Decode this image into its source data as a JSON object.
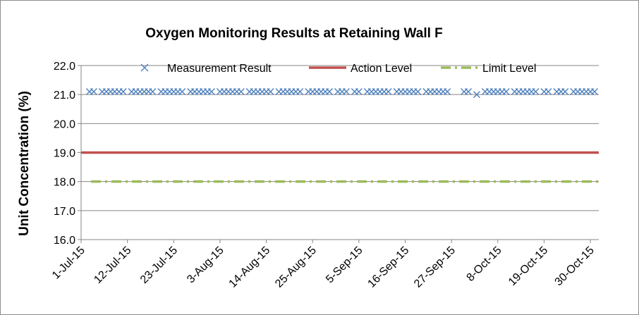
{
  "chart_data": {
    "type": "line",
    "title": "Oxygen Monitoring Results at Retaining Wall F",
    "ylabel": "Unit Concentration (%)",
    "xlabel": "",
    "ylim": [
      16.0,
      22.0
    ],
    "yticks": [
      "16.0",
      "17.0",
      "18.0",
      "19.0",
      "20.0",
      "21.0",
      "22.0"
    ],
    "xlim": [
      "2015-07-01",
      "2015-11-01"
    ],
    "xticks": [
      "1-Jul-15",
      "12-Jul-15",
      "23-Jul-15",
      "3-Aug-15",
      "14-Aug-15",
      "25-Aug-15",
      "5-Sep-15",
      "16-Sep-15",
      "27-Sep-15",
      "8-Oct-15",
      "19-Oct-15",
      "30-Oct-15"
    ],
    "grid": "horizontal",
    "legend_position": "top",
    "series": [
      {
        "name": "Measurement Result",
        "style": "x-markers",
        "color": "#4f81bd",
        "points": [
          {
            "x": "2015-07-03",
            "y": 21.1
          },
          {
            "x": "2015-07-04",
            "y": 21.1
          },
          {
            "x": "2015-07-06",
            "y": 21.1
          },
          {
            "x": "2015-07-07",
            "y": 21.1
          },
          {
            "x": "2015-07-08",
            "y": 21.1
          },
          {
            "x": "2015-07-09",
            "y": 21.1
          },
          {
            "x": "2015-07-10",
            "y": 21.1
          },
          {
            "x": "2015-07-11",
            "y": 21.1
          },
          {
            "x": "2015-07-13",
            "y": 21.1
          },
          {
            "x": "2015-07-14",
            "y": 21.1
          },
          {
            "x": "2015-07-15",
            "y": 21.1
          },
          {
            "x": "2015-07-16",
            "y": 21.1
          },
          {
            "x": "2015-07-17",
            "y": 21.1
          },
          {
            "x": "2015-07-18",
            "y": 21.1
          },
          {
            "x": "2015-07-20",
            "y": 21.1
          },
          {
            "x": "2015-07-21",
            "y": 21.1
          },
          {
            "x": "2015-07-22",
            "y": 21.1
          },
          {
            "x": "2015-07-23",
            "y": 21.1
          },
          {
            "x": "2015-07-24",
            "y": 21.1
          },
          {
            "x": "2015-07-25",
            "y": 21.1
          },
          {
            "x": "2015-07-27",
            "y": 21.1
          },
          {
            "x": "2015-07-28",
            "y": 21.1
          },
          {
            "x": "2015-07-29",
            "y": 21.1
          },
          {
            "x": "2015-07-30",
            "y": 21.1
          },
          {
            "x": "2015-07-31",
            "y": 21.1
          },
          {
            "x": "2015-08-01",
            "y": 21.1
          },
          {
            "x": "2015-08-03",
            "y": 21.1
          },
          {
            "x": "2015-08-04",
            "y": 21.1
          },
          {
            "x": "2015-08-05",
            "y": 21.1
          },
          {
            "x": "2015-08-06",
            "y": 21.1
          },
          {
            "x": "2015-08-07",
            "y": 21.1
          },
          {
            "x": "2015-08-08",
            "y": 21.1
          },
          {
            "x": "2015-08-10",
            "y": 21.1
          },
          {
            "x": "2015-08-11",
            "y": 21.1
          },
          {
            "x": "2015-08-12",
            "y": 21.1
          },
          {
            "x": "2015-08-13",
            "y": 21.1
          },
          {
            "x": "2015-08-14",
            "y": 21.1
          },
          {
            "x": "2015-08-15",
            "y": 21.1
          },
          {
            "x": "2015-08-17",
            "y": 21.1
          },
          {
            "x": "2015-08-18",
            "y": 21.1
          },
          {
            "x": "2015-08-19",
            "y": 21.1
          },
          {
            "x": "2015-08-20",
            "y": 21.1
          },
          {
            "x": "2015-08-21",
            "y": 21.1
          },
          {
            "x": "2015-08-22",
            "y": 21.1
          },
          {
            "x": "2015-08-24",
            "y": 21.1
          },
          {
            "x": "2015-08-25",
            "y": 21.1
          },
          {
            "x": "2015-08-26",
            "y": 21.1
          },
          {
            "x": "2015-08-27",
            "y": 21.1
          },
          {
            "x": "2015-08-28",
            "y": 21.1
          },
          {
            "x": "2015-08-29",
            "y": 21.1
          },
          {
            "x": "2015-08-31",
            "y": 21.1
          },
          {
            "x": "2015-09-01",
            "y": 21.1
          },
          {
            "x": "2015-09-02",
            "y": 21.1
          },
          {
            "x": "2015-09-04",
            "y": 21.1
          },
          {
            "x": "2015-09-05",
            "y": 21.1
          },
          {
            "x": "2015-09-07",
            "y": 21.1
          },
          {
            "x": "2015-09-08",
            "y": 21.1
          },
          {
            "x": "2015-09-09",
            "y": 21.1
          },
          {
            "x": "2015-09-10",
            "y": 21.1
          },
          {
            "x": "2015-09-11",
            "y": 21.1
          },
          {
            "x": "2015-09-12",
            "y": 21.1
          },
          {
            "x": "2015-09-14",
            "y": 21.1
          },
          {
            "x": "2015-09-15",
            "y": 21.1
          },
          {
            "x": "2015-09-16",
            "y": 21.1
          },
          {
            "x": "2015-09-17",
            "y": 21.1
          },
          {
            "x": "2015-09-18",
            "y": 21.1
          },
          {
            "x": "2015-09-19",
            "y": 21.1
          },
          {
            "x": "2015-09-21",
            "y": 21.1
          },
          {
            "x": "2015-09-22",
            "y": 21.1
          },
          {
            "x": "2015-09-23",
            "y": 21.1
          },
          {
            "x": "2015-09-24",
            "y": 21.1
          },
          {
            "x": "2015-09-25",
            "y": 21.1
          },
          {
            "x": "2015-09-26",
            "y": 21.1
          },
          {
            "x": "2015-09-30",
            "y": 21.1
          },
          {
            "x": "2015-10-01",
            "y": 21.1
          },
          {
            "x": "2015-10-03",
            "y": 21.0
          },
          {
            "x": "2015-10-05",
            "y": 21.1
          },
          {
            "x": "2015-10-06",
            "y": 21.1
          },
          {
            "x": "2015-10-07",
            "y": 21.1
          },
          {
            "x": "2015-10-08",
            "y": 21.1
          },
          {
            "x": "2015-10-09",
            "y": 21.1
          },
          {
            "x": "2015-10-10",
            "y": 21.1
          },
          {
            "x": "2015-10-12",
            "y": 21.1
          },
          {
            "x": "2015-10-13",
            "y": 21.1
          },
          {
            "x": "2015-10-14",
            "y": 21.1
          },
          {
            "x": "2015-10-15",
            "y": 21.1
          },
          {
            "x": "2015-10-16",
            "y": 21.1
          },
          {
            "x": "2015-10-17",
            "y": 21.1
          },
          {
            "x": "2015-10-19",
            "y": 21.1
          },
          {
            "x": "2015-10-20",
            "y": 21.1
          },
          {
            "x": "2015-10-22",
            "y": 21.1
          },
          {
            "x": "2015-10-23",
            "y": 21.1
          },
          {
            "x": "2015-10-24",
            "y": 21.1
          },
          {
            "x": "2015-10-26",
            "y": 21.1
          },
          {
            "x": "2015-10-27",
            "y": 21.1
          },
          {
            "x": "2015-10-28",
            "y": 21.1
          },
          {
            "x": "2015-10-29",
            "y": 21.1
          },
          {
            "x": "2015-10-30",
            "y": 21.1
          },
          {
            "x": "2015-10-31",
            "y": 21.1
          }
        ]
      },
      {
        "name": "Action Level",
        "style": "solid-line",
        "color": "#c0504d",
        "value": 19.0
      },
      {
        "name": "Limit Level",
        "style": "dash-dot-line",
        "color": "#9bbb59",
        "value": 18.0
      }
    ]
  }
}
